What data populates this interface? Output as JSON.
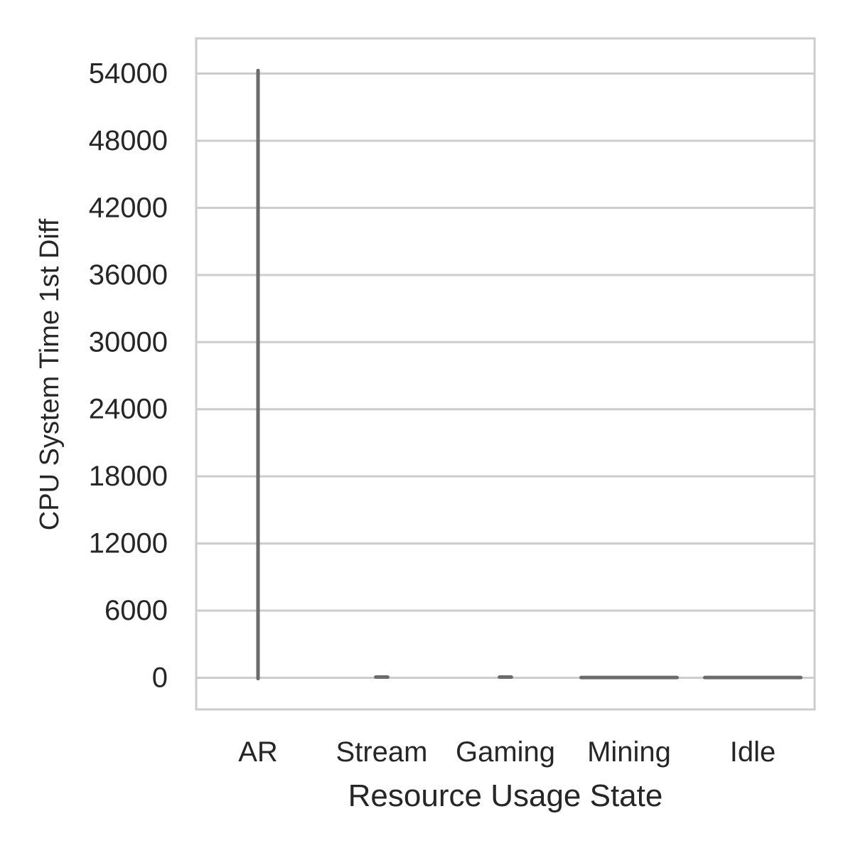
{
  "chart_data": {
    "type": "violin",
    "title": "",
    "xlabel": "Resource Usage State",
    "ylabel": "CPU System Time 1st Diff",
    "categories": [
      "AR",
      "Stream",
      "Gaming",
      "Mining",
      "Idle"
    ],
    "ylim": [
      -2800,
      57000
    ],
    "yticks": [
      0,
      6000,
      12000,
      18000,
      24000,
      30000,
      36000,
      42000,
      48000,
      54000
    ],
    "ytick_labels": [
      "0",
      "6000",
      "12000",
      "18000",
      "24000",
      "30000",
      "36000",
      "42000",
      "48000",
      "54000"
    ],
    "grid": true,
    "series": [
      {
        "category": "AR",
        "min": -200,
        "max": 54400,
        "width": 0.01
      },
      {
        "category": "Stream",
        "min": -30,
        "max": 60,
        "width": 0.12
      },
      {
        "category": "Gaming",
        "min": -30,
        "max": 60,
        "width": 0.12
      },
      {
        "category": "Mining",
        "min": -20,
        "max": 20,
        "width": 0.8
      },
      {
        "category": "Idle",
        "min": -20,
        "max": 20,
        "width": 0.8
      }
    ],
    "colors": {
      "violin": "#6b6b6b",
      "grid": "#cccccc",
      "frame": "#cccccc",
      "text": "#262626"
    }
  }
}
